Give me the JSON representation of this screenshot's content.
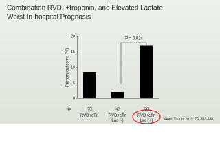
{
  "chart_data": {
    "type": "bar",
    "title": "Combination RVD, +troponin, and Elevated Lactate",
    "subtitle": "Worst In-hospital Prognosis",
    "y_label": "Primary outcome (%)",
    "categories": [
      "RVD+cTn",
      "RVD+cTn Lac (-)",
      "RVD+cTn Lac (+)"
    ],
    "values": [
      8.5,
      2,
      17
    ],
    "color": "#000000",
    "n_prefix": "N=",
    "n_labels": [
      "[70]",
      "[42]",
      "[28]"
    ],
    "annotation": "P = 0.024",
    "citation": "Vanni. Thorax 2015; 70: 333-338",
    "ylim": [
      0,
      20
    ],
    "yticks": [
      0,
      5,
      10,
      15,
      20
    ]
  }
}
